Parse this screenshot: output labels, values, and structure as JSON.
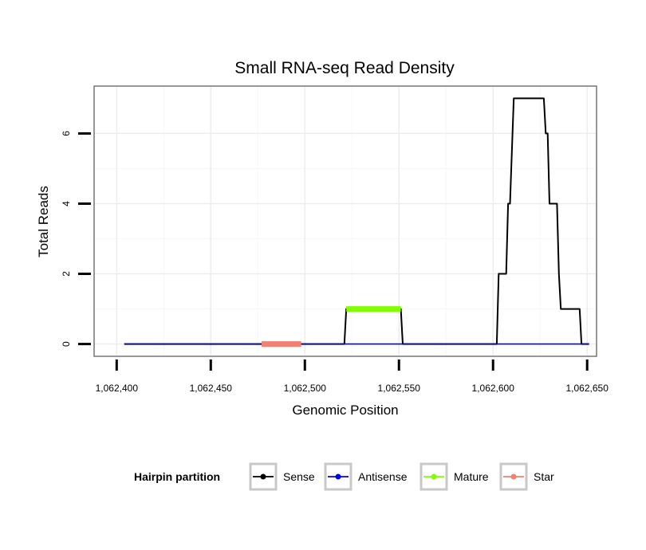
{
  "chart_data": {
    "type": "line",
    "title": "Small RNA-seq Read Density",
    "xlabel": "Genomic Position",
    "ylabel": "Total Reads",
    "xlim": [
      1062388,
      1062655
    ],
    "ylim": [
      -0.35,
      7.35
    ],
    "x_ticks": [
      1062400,
      1062450,
      1062500,
      1062550,
      1062600,
      1062650
    ],
    "x_tick_labels": [
      "1,062,400",
      "1,062,450",
      "1,062,500",
      "1,062,550",
      "1,062,600",
      "1,062,650"
    ],
    "y_ticks": [
      0,
      2,
      4,
      6
    ],
    "y_tick_labels": [
      "0",
      "2",
      "4",
      "6"
    ],
    "grid": true,
    "legend": {
      "title": "Hairpin partition",
      "position": "bottom",
      "entries": [
        {
          "name": "Sense",
          "color": "#000000"
        },
        {
          "name": "Antisense",
          "color": "#0000ff"
        },
        {
          "name": "Mature",
          "color": "#7fff00"
        },
        {
          "name": "Star",
          "color": "#f08070"
        }
      ]
    },
    "series": [
      {
        "name": "Sense",
        "color": "#000000",
        "x": [
          1062404,
          1062521,
          1062522,
          1062551,
          1062552,
          1062602,
          1062603,
          1062607,
          1062608,
          1062609,
          1062611,
          1062627,
          1062628,
          1062629,
          1062630,
          1062634,
          1062635,
          1062636,
          1062646,
          1062647,
          1062651
        ],
        "y": [
          0,
          0,
          1,
          1,
          0,
          0,
          2,
          2,
          4,
          4,
          7,
          7,
          6,
          6,
          4,
          4,
          2,
          1,
          1,
          0,
          0
        ]
      },
      {
        "name": "Antisense",
        "color": "#0000ff",
        "x": [
          1062404,
          1062651
        ],
        "y": [
          0,
          0
        ]
      },
      {
        "name": "Mature",
        "color": "#7fff00",
        "x": [
          1062522,
          1062551
        ],
        "y": [
          1,
          1
        ]
      },
      {
        "name": "Star",
        "color": "#f08070",
        "x": [
          1062477,
          1062498
        ],
        "y": [
          0,
          0
        ]
      }
    ]
  }
}
